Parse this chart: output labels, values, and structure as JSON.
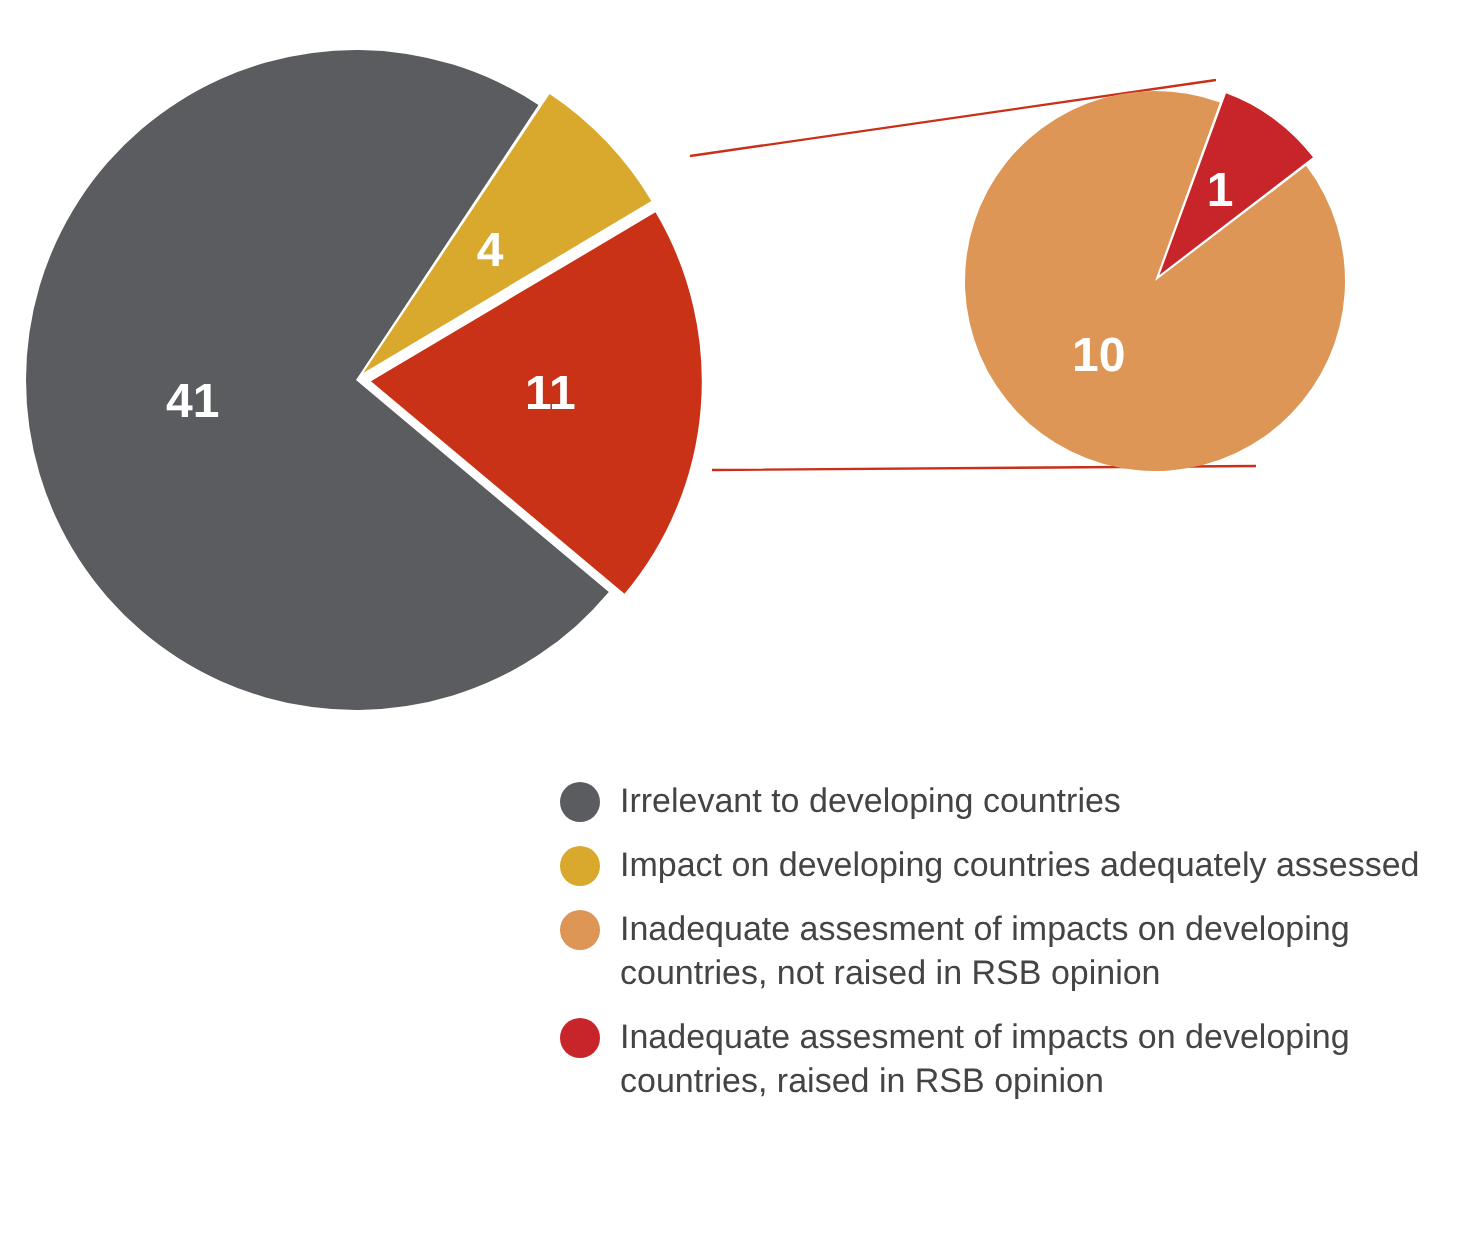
{
  "chart_data": [
    {
      "type": "pie",
      "categories": [
        "Irrelevant to developing countries",
        "Impact on developing countries adequately assessed",
        null
      ],
      "values": [
        41,
        4,
        11
      ],
      "colors": [
        "#5b5c60",
        "#d9a92e",
        "#c93217"
      ],
      "data_labels": true,
      "legend": "bottom"
    },
    {
      "type": "pie",
      "categories": [
        "Inadequate assesment of impacts on developing countries, not raised in RSB opinion",
        "Inadequate assesment of impacts on developing countries, raised in RSB opinion"
      ],
      "values": [
        10,
        1
      ],
      "colors": [
        "#dd9655",
        "#c8252a"
      ],
      "data_labels": true,
      "legend": "bottom"
    }
  ]
}
